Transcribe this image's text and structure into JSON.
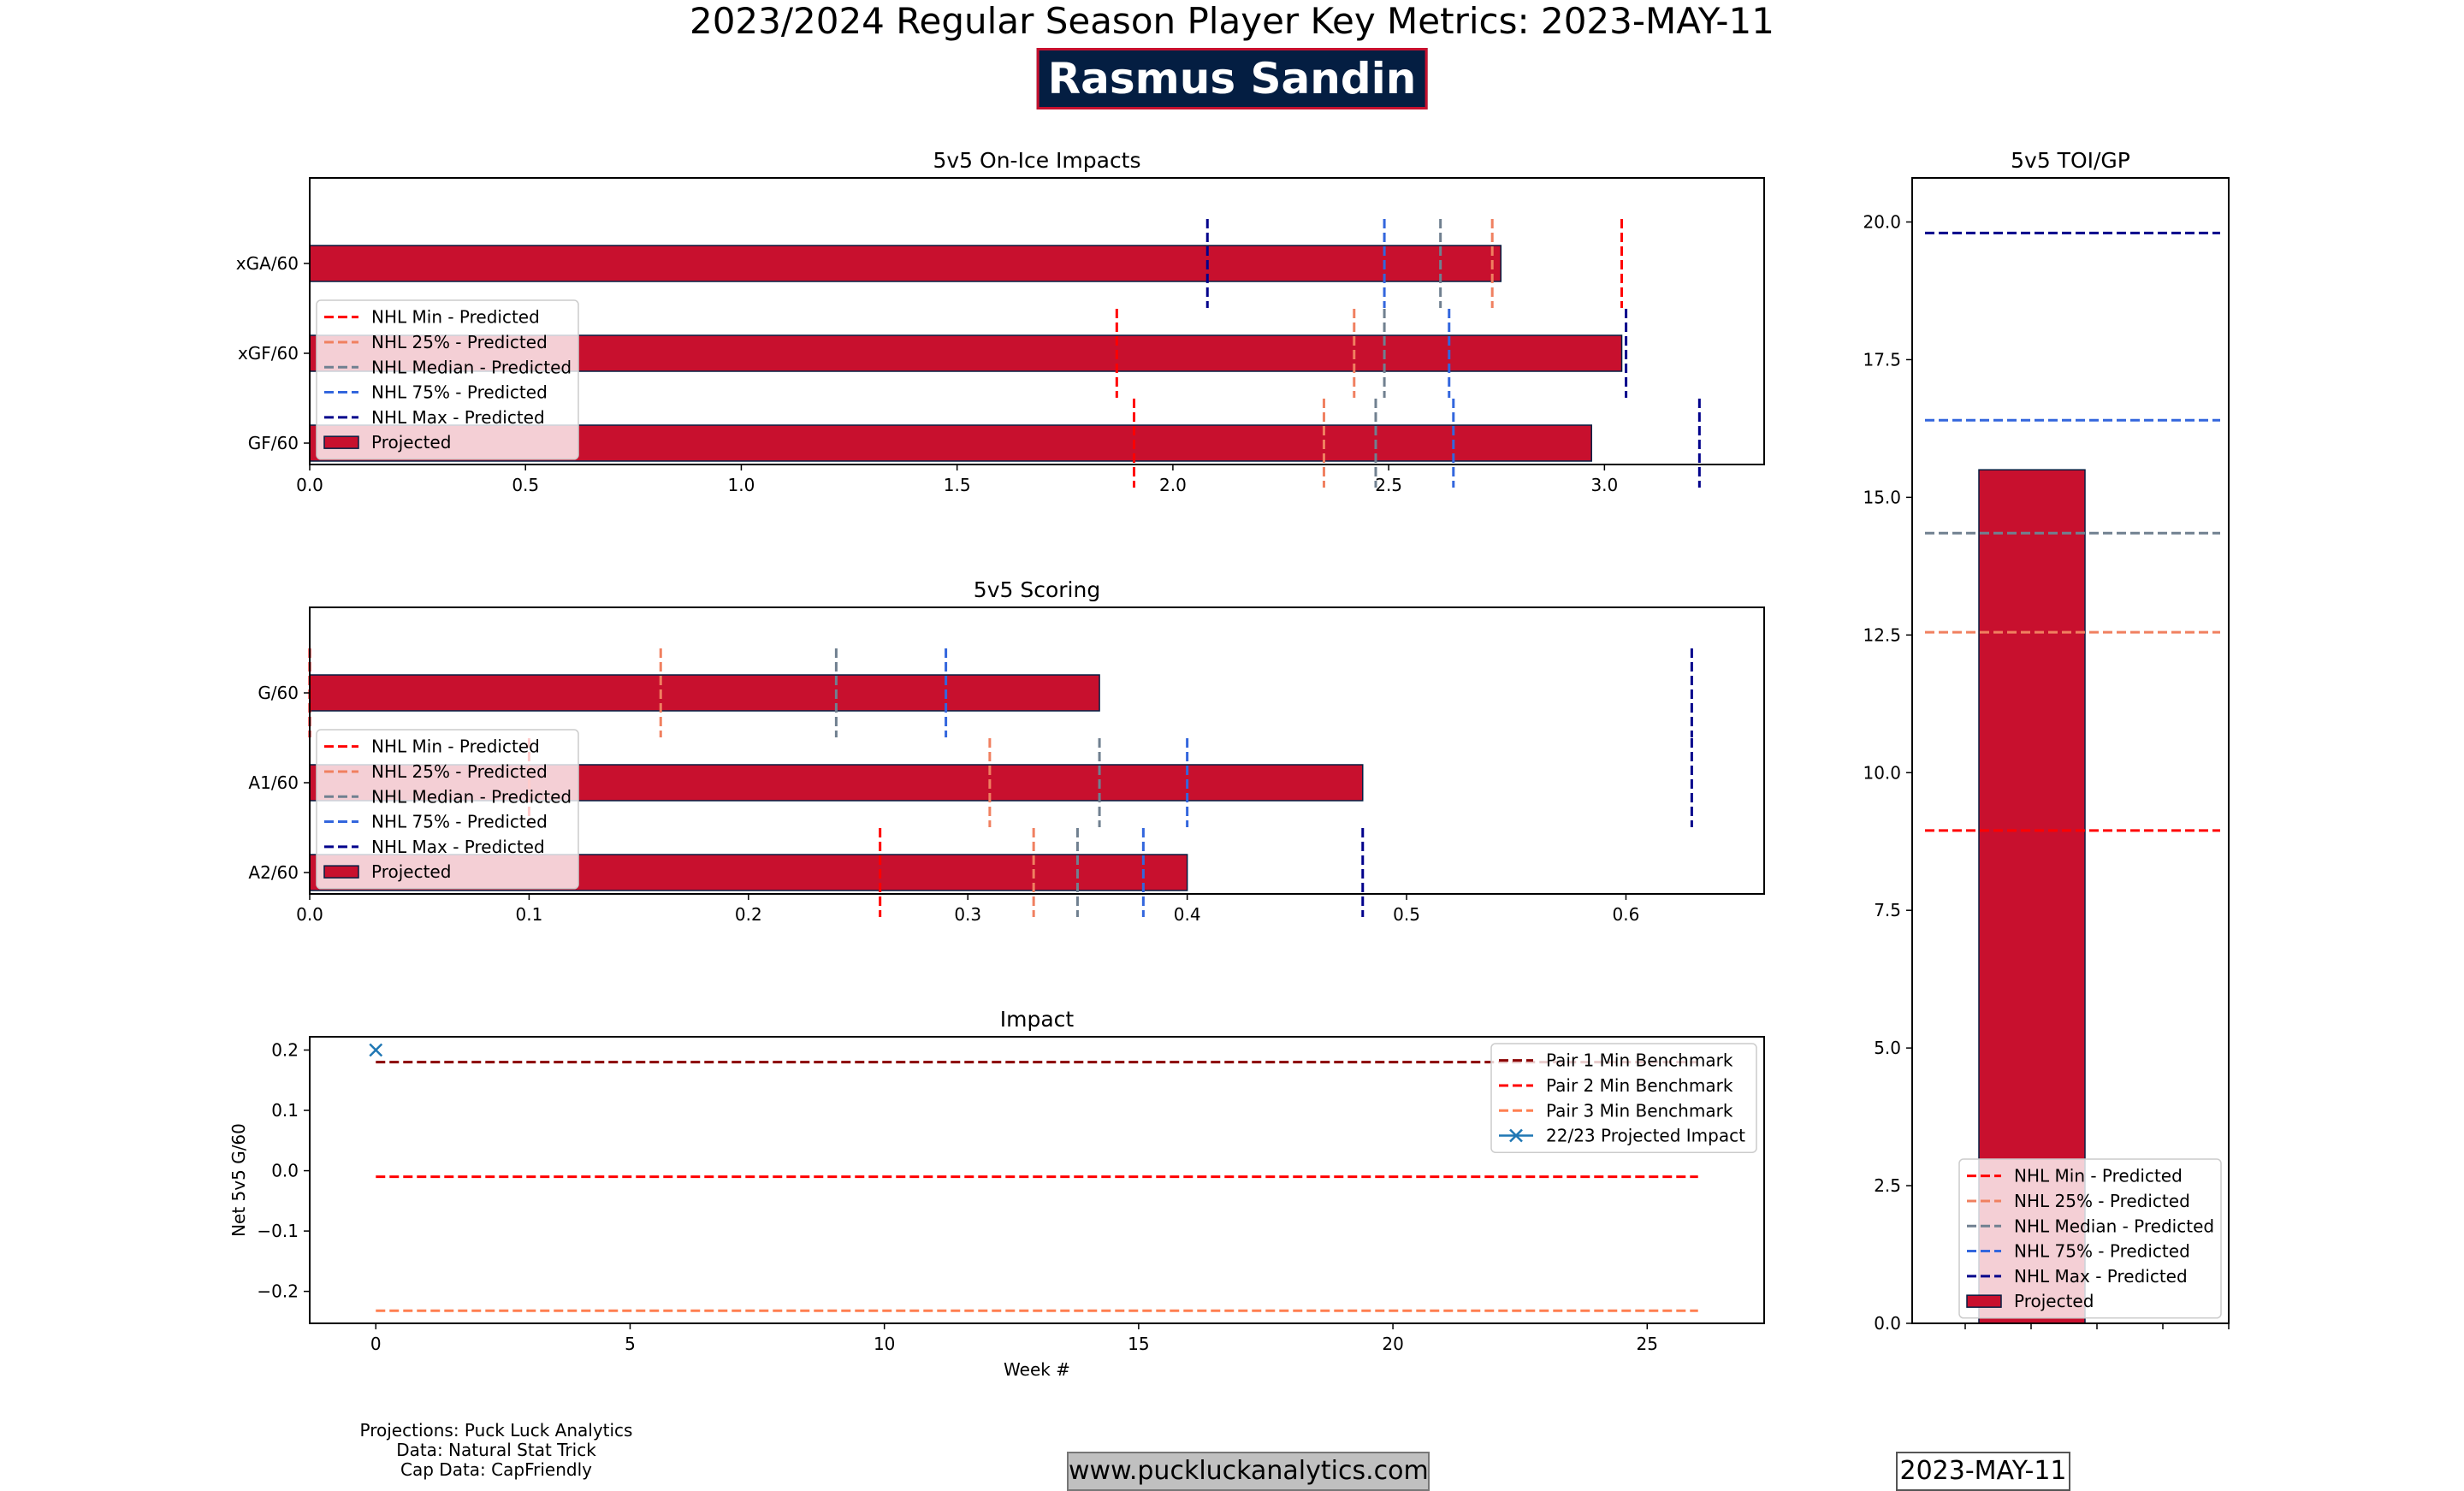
{
  "header": {
    "title": "2023/2024 Regular Season Player Key Metrics: 2023-MAY-11",
    "player": "Rasmus Sandin"
  },
  "footer": {
    "credits": [
      "Projections: Puck Luck Analytics",
      "Data: Natural Stat Trick",
      "Cap Data: CapFriendly"
    ],
    "url": "www.puckluckanalytics.com",
    "date": "2023-MAY-11"
  },
  "colors": {
    "bar": "#c8102e",
    "bar_edge": "#041e42",
    "nhl_min": "#ff0000",
    "nhl_25": "#f08060",
    "nhl_median": "#708090",
    "nhl_75": "#3366dd",
    "nhl_max": "#00008b",
    "pair1": "#8b0000",
    "pair2": "#ff0000",
    "pair3": "#ff7f50",
    "projected_impact": "#1f77b4"
  },
  "chart_data": [
    {
      "id": "onice",
      "type": "bar",
      "orientation": "horizontal",
      "title": "5v5 On-Ice Impacts",
      "categories": [
        "xGA/60",
        "xGF/60",
        "GF/60"
      ],
      "xlim": [
        0,
        3.37
      ],
      "xticks": [
        0,
        0.5,
        1.0,
        1.5,
        2.0,
        2.5,
        3.0
      ],
      "xtick_labels": [
        "0.0",
        "0.5",
        "1.0",
        "1.5",
        "2.0",
        "2.5",
        "3.0"
      ],
      "legend": [
        "NHL Min - Predicted",
        "NHL 25% - Predicted",
        "NHL Median - Predicted",
        "NHL 75% - Predicted",
        "NHL Max - Predicted",
        "Projected"
      ],
      "legend_position": "center-left",
      "series": [
        {
          "name": "Projected",
          "values": [
            2.76,
            3.04,
            2.97
          ]
        },
        {
          "name": "NHL Min - Predicted",
          "values": [
            3.04,
            1.87,
            1.91
          ]
        },
        {
          "name": "NHL 25% - Predicted",
          "values": [
            2.74,
            2.42,
            2.35
          ]
        },
        {
          "name": "NHL Median - Predicted",
          "values": [
            2.62,
            2.49,
            2.47
          ]
        },
        {
          "name": "NHL 75% - Predicted",
          "values": [
            2.49,
            2.64,
            2.65
          ]
        },
        {
          "name": "NHL Max - Predicted",
          "values": [
            2.08,
            3.05,
            3.22
          ]
        }
      ]
    },
    {
      "id": "scoring",
      "type": "bar",
      "orientation": "horizontal",
      "title": "5v5 Scoring",
      "categories": [
        "G/60",
        "A1/60",
        "A2/60"
      ],
      "xlim": [
        0,
        0.663
      ],
      "xticks": [
        0,
        0.1,
        0.2,
        0.3,
        0.4,
        0.5,
        0.6
      ],
      "xtick_labels": [
        "0.0",
        "0.1",
        "0.2",
        "0.3",
        "0.4",
        "0.5",
        "0.6"
      ],
      "legend": [
        "NHL Min - Predicted",
        "NHL 25% - Predicted",
        "NHL Median - Predicted",
        "NHL 75% - Predicted",
        "NHL Max - Predicted",
        "Projected"
      ],
      "legend_position": "center-left",
      "series": [
        {
          "name": "Projected",
          "values": [
            0.36,
            0.48,
            0.4
          ]
        },
        {
          "name": "NHL Min - Predicted",
          "values": [
            0.0,
            0.1,
            0.26
          ]
        },
        {
          "name": "NHL 25% - Predicted",
          "values": [
            0.16,
            0.31,
            0.33
          ]
        },
        {
          "name": "NHL Median - Predicted",
          "values": [
            0.24,
            0.36,
            0.35
          ]
        },
        {
          "name": "NHL 75% - Predicted",
          "values": [
            0.29,
            0.4,
            0.38
          ]
        },
        {
          "name": "NHL Max - Predicted",
          "values": [
            0.63,
            0.63,
            0.48
          ]
        }
      ]
    },
    {
      "id": "impact",
      "type": "line",
      "title": "Impact",
      "xlabel": "Week #",
      "ylabel": "Net 5v5 G/60",
      "xlim": [
        -1.3,
        27.3
      ],
      "ylim": [
        -0.253,
        0.222
      ],
      "xticks": [
        0,
        5,
        10,
        15,
        20,
        25
      ],
      "xtick_labels": [
        "0",
        "5",
        "10",
        "15",
        "20",
        "25"
      ],
      "yticks": [
        -0.2,
        -0.1,
        0.0,
        0.1,
        0.2
      ],
      "ytick_labels": [
        "−0.2",
        "−0.1",
        "0.0",
        "0.1",
        "0.2"
      ],
      "legend_position": "top-right",
      "series": [
        {
          "name": "Pair 1 Min Benchmark",
          "x": [
            0,
            26
          ],
          "y": [
            0.18,
            0.18
          ]
        },
        {
          "name": "Pair 2 Min Benchmark",
          "x": [
            0,
            26
          ],
          "y": [
            -0.01,
            -0.01
          ]
        },
        {
          "name": "Pair 3 Min Benchmark",
          "x": [
            0,
            26
          ],
          "y": [
            -0.232,
            -0.232
          ]
        },
        {
          "name": "22/23 Projected Impact",
          "x": [
            0
          ],
          "y": [
            0.2
          ]
        }
      ]
    },
    {
      "id": "toi",
      "type": "bar",
      "orientation": "vertical",
      "title": "5v5 TOI/GP",
      "ylim": [
        0,
        20.8
      ],
      "yticks": [
        0,
        2.5,
        5,
        7.5,
        10,
        12.5,
        15,
        17.5,
        20
      ],
      "ytick_labels": [
        "0.0",
        "2.5",
        "5.0",
        "7.5",
        "10.0",
        "12.5",
        "15.0",
        "17.5",
        "20.0"
      ],
      "legend": [
        "NHL Min - Predicted",
        "NHL 25% - Predicted",
        "NHL Median - Predicted",
        "NHL 75% - Predicted",
        "NHL Max - Predicted",
        "Projected"
      ],
      "legend_position": "bottom-center",
      "series": [
        {
          "name": "Projected",
          "values": [
            15.5
          ]
        },
        {
          "name": "NHL Min - Predicted",
          "values": [
            8.95
          ]
        },
        {
          "name": "NHL 25% - Predicted",
          "values": [
            12.55
          ]
        },
        {
          "name": "NHL Median - Predicted",
          "values": [
            14.35
          ]
        },
        {
          "name": "NHL 75% - Predicted",
          "values": [
            16.4
          ]
        },
        {
          "name": "NHL Max - Predicted",
          "values": [
            19.8
          ]
        }
      ]
    }
  ]
}
